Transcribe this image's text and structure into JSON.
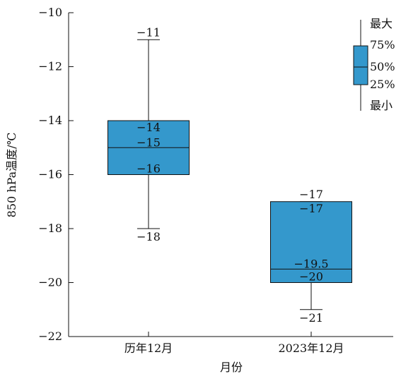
{
  "chart_data": {
    "type": "boxplot",
    "xlabel": "月份",
    "ylabel": "850 hPa温度/℃",
    "ylim": [
      -22,
      -10
    ],
    "yticks": [
      -10,
      -12,
      -14,
      -16,
      -18,
      -20,
      -22
    ],
    "ytick_labels": [
      "−10",
      "−12",
      "−14",
      "−16",
      "−18",
      "−20",
      "−22"
    ],
    "categories": [
      "历年12月",
      "2023年12月"
    ],
    "boxes": [
      {
        "category": "历年12月",
        "min": -18,
        "q1": -16,
        "median": -15,
        "q3": -14,
        "max": -11,
        "labels": {
          "max": "−11",
          "q3": "−14",
          "median": "−15",
          "q1": "−16",
          "min": "−18"
        }
      },
      {
        "category": "2023年12月",
        "min": -21,
        "q1": -20,
        "median": -19.5,
        "q3": -17,
        "max": -17,
        "labels": {
          "max": "−17",
          "q3": "−17",
          "median": "−19.5",
          "q1": "−20",
          "min": "−21"
        }
      }
    ],
    "box_color": "#3498cc",
    "grid": false,
    "legend": {
      "position": "top-right",
      "labels": [
        "最大",
        "75%",
        "50%",
        "25%",
        "最小"
      ]
    }
  }
}
